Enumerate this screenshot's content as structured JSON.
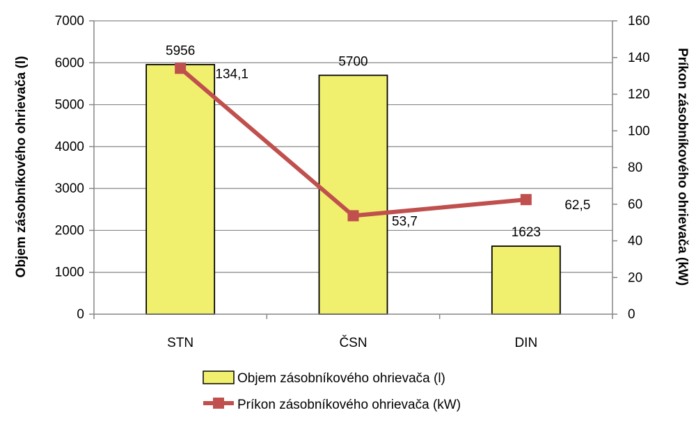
{
  "chart_data": {
    "type": "bar+line",
    "categories": [
      "STN",
      "ČSN",
      "DIN"
    ],
    "series": [
      {
        "name": "Objem  zásobníkového ohrievača (l)",
        "type": "bar",
        "axis": "left",
        "values": [
          5956,
          5700,
          1623
        ],
        "data_labels": [
          "5956",
          "5700",
          "1623"
        ],
        "color": "#f0f06e"
      },
      {
        "name": "Príkon zásobníkového ohrievača (kW)",
        "type": "line",
        "axis": "right",
        "values": [
          134.1,
          53.7,
          62.5
        ],
        "data_labels": [
          "134,1",
          "53,7",
          "62,5"
        ],
        "color": "#c0504d"
      }
    ],
    "ylabel_left": "Objem  zásobníkového ohrievača (l)",
    "ylabel_right": "Príkon zásobníkového ohrievača (kW)",
    "ylim_left": [
      0,
      7000
    ],
    "ylim_right": [
      0,
      160
    ],
    "yticks_left": [
      "0",
      "1000",
      "2000",
      "3000",
      "4000",
      "5000",
      "6000",
      "7000"
    ],
    "yticks_right": [
      "0",
      "20",
      "40",
      "60",
      "80",
      "100",
      "120",
      "140",
      "160"
    ],
    "grid": true,
    "legend_position": "bottom",
    "bar_border_color": "#000000",
    "grid_color": "#868686"
  }
}
